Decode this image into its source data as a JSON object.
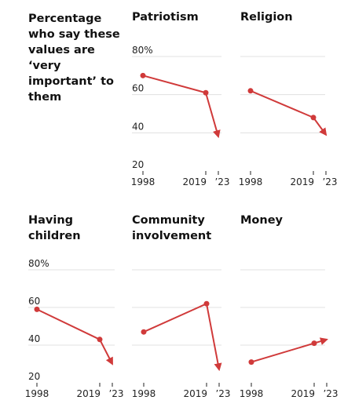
{
  "headline": "Percentage who say these values are ‘very important’ to them",
  "colors": {
    "line": "#d03a3a",
    "grid": "#e0e0e0",
    "axis": "#222222"
  },
  "chart_data": [
    {
      "type": "line",
      "title": "Patriotism",
      "x": [
        "1998",
        "2019",
        "2023"
      ],
      "values": [
        70,
        61,
        38
      ],
      "xticks": [
        "1998",
        "2019",
        "’23"
      ],
      "yticks": [
        "80%",
        "60",
        "40",
        "20"
      ],
      "ylim": [
        20,
        80
      ]
    },
    {
      "type": "line",
      "title": "Religion",
      "x": [
        "1998",
        "2019",
        "2023"
      ],
      "values": [
        62,
        48,
        39
      ],
      "xticks": [
        "1998",
        "2019",
        "’23"
      ],
      "yticks": [],
      "ylim": [
        20,
        80
      ]
    },
    {
      "type": "line",
      "title": "Having children",
      "x": [
        "1998",
        "2019",
        "2023"
      ],
      "values": [
        59,
        43,
        30
      ],
      "xticks": [
        "1998",
        "2019",
        "’23"
      ],
      "yticks": [
        "80%",
        "60",
        "40",
        "20"
      ],
      "ylim": [
        20,
        80
      ]
    },
    {
      "type": "line",
      "title": "Community involvement",
      "x": [
        "1998",
        "2019",
        "2023"
      ],
      "values": [
        47,
        62,
        27
      ],
      "xticks": [
        "1998",
        "2019",
        "’23"
      ],
      "yticks": [],
      "ylim": [
        20,
        80
      ]
    },
    {
      "type": "line",
      "title": "Money",
      "x": [
        "1998",
        "2019",
        "2023"
      ],
      "values": [
        31,
        41,
        43
      ],
      "xticks": [
        "1998",
        "2019",
        "’23"
      ],
      "yticks": [],
      "ylim": [
        20,
        80
      ]
    }
  ]
}
